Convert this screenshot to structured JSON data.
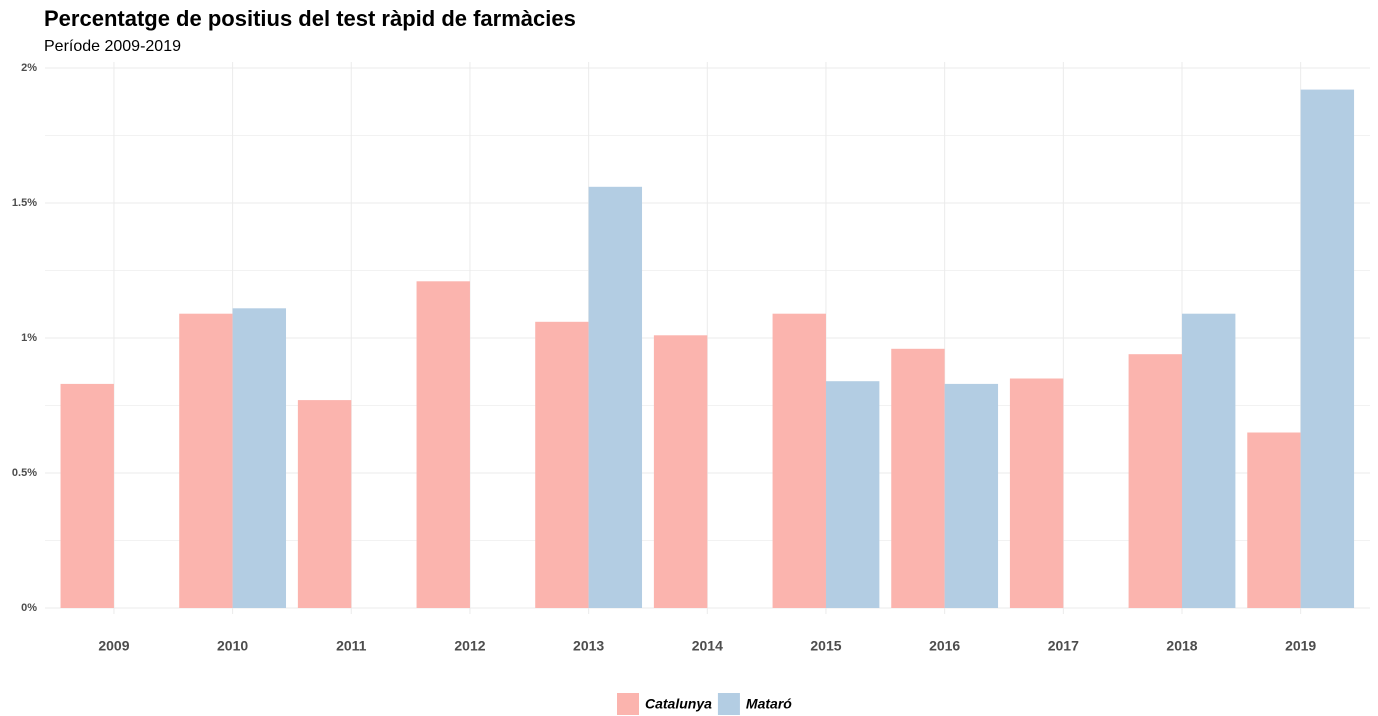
{
  "chart_data": {
    "type": "bar",
    "title": "Percentatge de positius del test ràpid de farmàcies",
    "subtitle": "Període 2009-2019",
    "categories": [
      "2009",
      "2010",
      "2011",
      "2012",
      "2013",
      "2014",
      "2015",
      "2016",
      "2017",
      "2018",
      "2019"
    ],
    "series": [
      {
        "name": "Catalunya",
        "color": "#fbb4ae",
        "values": [
          0.83,
          1.09,
          0.77,
          1.21,
          1.06,
          1.01,
          1.09,
          0.96,
          0.85,
          0.94,
          0.65
        ]
      },
      {
        "name": "Mataró",
        "color": "#b3cde3",
        "values": [
          null,
          1.11,
          null,
          null,
          1.56,
          null,
          0.84,
          0.83,
          null,
          1.09,
          1.92
        ]
      }
    ],
    "ylim": [
      0,
      2
    ],
    "yticks": [
      {
        "value": 0,
        "label": "0%"
      },
      {
        "value": 0.5,
        "label": "0.5%"
      },
      {
        "value": 1,
        "label": "1%"
      },
      {
        "value": 1.5,
        "label": "1.5%"
      },
      {
        "value": 2,
        "label": "2%"
      }
    ],
    "grid": true,
    "legend": "bottom"
  }
}
